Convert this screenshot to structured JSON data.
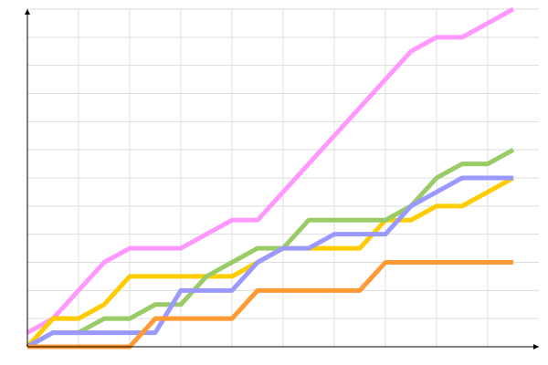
{
  "chart_data": {
    "type": "line",
    "title": "",
    "xlabel": "",
    "ylabel": "",
    "xlim": [
      0,
      20
    ],
    "ylim": [
      0,
      12
    ],
    "x_grid_step": 2,
    "y_grid_step": 1,
    "grid": true,
    "legend": "none",
    "x": [
      0,
      1,
      2,
      3,
      4,
      5,
      6,
      7,
      8,
      9,
      10,
      11,
      12,
      13,
      14,
      15,
      16,
      17,
      18,
      19
    ],
    "series": [
      {
        "color": "#ff99ff",
        "values": [
          0.5,
          1,
          2,
          3,
          3.5,
          3.5,
          3.5,
          4,
          4.5,
          4.5,
          5.5,
          6.5,
          7.5,
          8.5,
          9.5,
          10.5,
          11,
          11,
          11.5,
          12
        ]
      },
      {
        "color": "#ffcc00",
        "values": [
          0,
          1,
          1,
          1.5,
          2.5,
          2.5,
          2.5,
          2.5,
          2.5,
          3,
          3.5,
          3.5,
          3.5,
          3.5,
          4.5,
          4.5,
          5,
          5,
          5.5,
          6
        ]
      },
      {
        "color": "#99cc66",
        "values": [
          0,
          0.5,
          0.5,
          1,
          1,
          1.5,
          1.5,
          2.5,
          3,
          3.5,
          3.5,
          4.5,
          4.5,
          4.5,
          4.5,
          5,
          6,
          6.5,
          6.5,
          7
        ]
      },
      {
        "color": "#9999ff",
        "values": [
          0,
          0.5,
          0.5,
          0.5,
          0.5,
          0.5,
          2,
          2,
          2,
          3,
          3.5,
          3.5,
          4,
          4,
          4,
          5,
          5.5,
          6,
          6,
          6
        ]
      },
      {
        "color": "#ff9933",
        "values": [
          0,
          0,
          0,
          0,
          0,
          1,
          1,
          1,
          1,
          2,
          2,
          2,
          2,
          2,
          3,
          3,
          3,
          3,
          3,
          3
        ]
      }
    ]
  }
}
